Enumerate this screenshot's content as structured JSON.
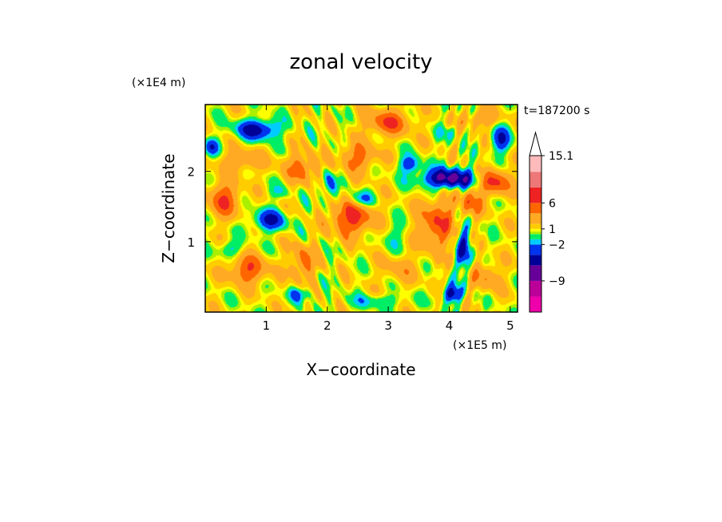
{
  "chart_data": {
    "type": "heatmap",
    "title": "zonal velocity",
    "xlabel": "X−coordinate",
    "ylabel": "Z−coordinate",
    "x_unit": "(×1E5 m)",
    "y_unit": "(×1E4 m)",
    "time_label": "t=187200 s",
    "xlim": [
      0,
      5.12
    ],
    "ylim": [
      0,
      2.95
    ],
    "x_ticks": [
      1,
      2,
      3,
      4,
      5
    ],
    "x_tick_labels": [
      "1",
      "2",
      "3",
      "4",
      "5"
    ],
    "y_ticks": [
      1,
      2
    ],
    "y_tick_labels": [
      "1",
      "2"
    ],
    "colorbar": {
      "min": -15,
      "max": 15.1,
      "labels": [
        {
          "value": 15.1,
          "text": "15.1"
        },
        {
          "value": 6,
          "text": "6"
        },
        {
          "value": 1,
          "text": "1"
        },
        {
          "value": -2,
          "text": "−2"
        },
        {
          "value": -9,
          "text": "−9"
        }
      ],
      "levels": [
        {
          "lo": -15,
          "hi": -12,
          "color": "#ee00aa"
        },
        {
          "lo": -12,
          "hi": -9,
          "color": "#bb0099"
        },
        {
          "lo": -9,
          "hi": -6,
          "color": "#660099"
        },
        {
          "lo": -6,
          "hi": -4,
          "color": "#000099"
        },
        {
          "lo": -4,
          "hi": -2,
          "color": "#0033ee"
        },
        {
          "lo": -2,
          "hi": -1,
          "color": "#00ccff"
        },
        {
          "lo": -1,
          "hi": 0,
          "color": "#00ee66"
        },
        {
          "lo": 0,
          "hi": 0.5,
          "color": "#aaee00"
        },
        {
          "lo": 0.5,
          "hi": 1,
          "color": "#ffff00"
        },
        {
          "lo": 1,
          "hi": 2,
          "color": "#ffcc00"
        },
        {
          "lo": 2,
          "hi": 4,
          "color": "#ffaa22"
        },
        {
          "lo": 4,
          "hi": 6,
          "color": "#ff6600"
        },
        {
          "lo": 6,
          "hi": 9,
          "color": "#ee2222"
        },
        {
          "lo": 9,
          "hi": 12,
          "color": "#ee7777"
        },
        {
          "lo": 12,
          "hi": 15.1,
          "color": "#ffbbbb"
        }
      ]
    },
    "field_features": [
      {
        "x": 0.85,
        "z": 2.6,
        "u": -6,
        "sx": 0.35,
        "sz": 0.14
      },
      {
        "x": 0.1,
        "z": 2.35,
        "u": -4,
        "sx": 0.12,
        "sz": 0.12
      },
      {
        "x": 1.05,
        "z": 1.3,
        "u": -5,
        "sx": 0.28,
        "sz": 0.15
      },
      {
        "x": 0.4,
        "z": 0.9,
        "u": -2.5,
        "sx": 0.2,
        "sz": 0.12
      },
      {
        "x": 2.55,
        "z": 1.6,
        "u": -4,
        "sx": 0.2,
        "sz": 0.12
      },
      {
        "x": 2.0,
        "z": 1.8,
        "u": -3,
        "sx": 0.15,
        "sz": 0.25
      },
      {
        "x": 3.35,
        "z": 2.1,
        "u": -4,
        "sx": 0.18,
        "sz": 0.12
      },
      {
        "x": 4.0,
        "z": 1.9,
        "u": -8,
        "sx": 0.45,
        "sz": 0.14
      },
      {
        "x": 4.85,
        "z": 2.45,
        "u": -5,
        "sx": 0.15,
        "sz": 0.18
      },
      {
        "x": 4.25,
        "z": 0.9,
        "u": -5,
        "sx": 0.12,
        "sz": 0.35
      },
      {
        "x": 4.05,
        "z": 0.25,
        "u": -6,
        "sx": 0.15,
        "sz": 0.12
      },
      {
        "x": 1.55,
        "z": 0.25,
        "u": -3,
        "sx": 0.2,
        "sz": 0.1
      },
      {
        "x": 2.8,
        "z": 0.15,
        "u": -2,
        "sx": 0.5,
        "sz": 0.1
      },
      {
        "x": 0.3,
        "z": 1.6,
        "u": 5,
        "sx": 0.25,
        "sz": 0.25
      },
      {
        "x": 0.7,
        "z": 0.6,
        "u": 5,
        "sx": 0.3,
        "sz": 0.2
      },
      {
        "x": 1.6,
        "z": 0.7,
        "u": 4,
        "sx": 0.2,
        "sz": 0.25
      },
      {
        "x": 2.4,
        "z": 1.35,
        "u": 6,
        "sx": 0.35,
        "sz": 0.25
      },
      {
        "x": 2.5,
        "z": 2.2,
        "u": 4,
        "sx": 0.3,
        "sz": 0.2
      },
      {
        "x": 3.0,
        "z": 2.7,
        "u": 5,
        "sx": 0.35,
        "sz": 0.18
      },
      {
        "x": 1.6,
        "z": 2.05,
        "u": 4,
        "sx": 0.3,
        "sz": 0.2
      },
      {
        "x": 3.8,
        "z": 1.25,
        "u": 5,
        "sx": 0.3,
        "sz": 0.35
      },
      {
        "x": 4.35,
        "z": 1.55,
        "u": 4,
        "sx": 0.2,
        "sz": 0.2
      },
      {
        "x": 4.75,
        "z": 1.85,
        "u": 6,
        "sx": 0.25,
        "sz": 0.18
      },
      {
        "x": 4.6,
        "z": 0.5,
        "u": 3,
        "sx": 0.25,
        "sz": 0.2
      },
      {
        "x": 3.2,
        "z": 0.6,
        "u": 2,
        "sx": 0.3,
        "sz": 0.2
      },
      {
        "x": 3.1,
        "z": 1.1,
        "u": -1.5,
        "sx": 0.25,
        "sz": 0.2
      },
      {
        "x": 0.6,
        "z": 2.15,
        "u": 3,
        "sx": 0.35,
        "sz": 0.15
      },
      {
        "x": 4.5,
        "z": 2.75,
        "u": 3,
        "sx": 0.3,
        "sz": 0.12
      },
      {
        "x": 4.0,
        "z": 2.55,
        "u": -1.5,
        "sx": 0.2,
        "sz": 0.1
      },
      {
        "x": 1.2,
        "z": 1.7,
        "u": -1.5,
        "sx": 0.2,
        "sz": 0.1
      }
    ]
  }
}
